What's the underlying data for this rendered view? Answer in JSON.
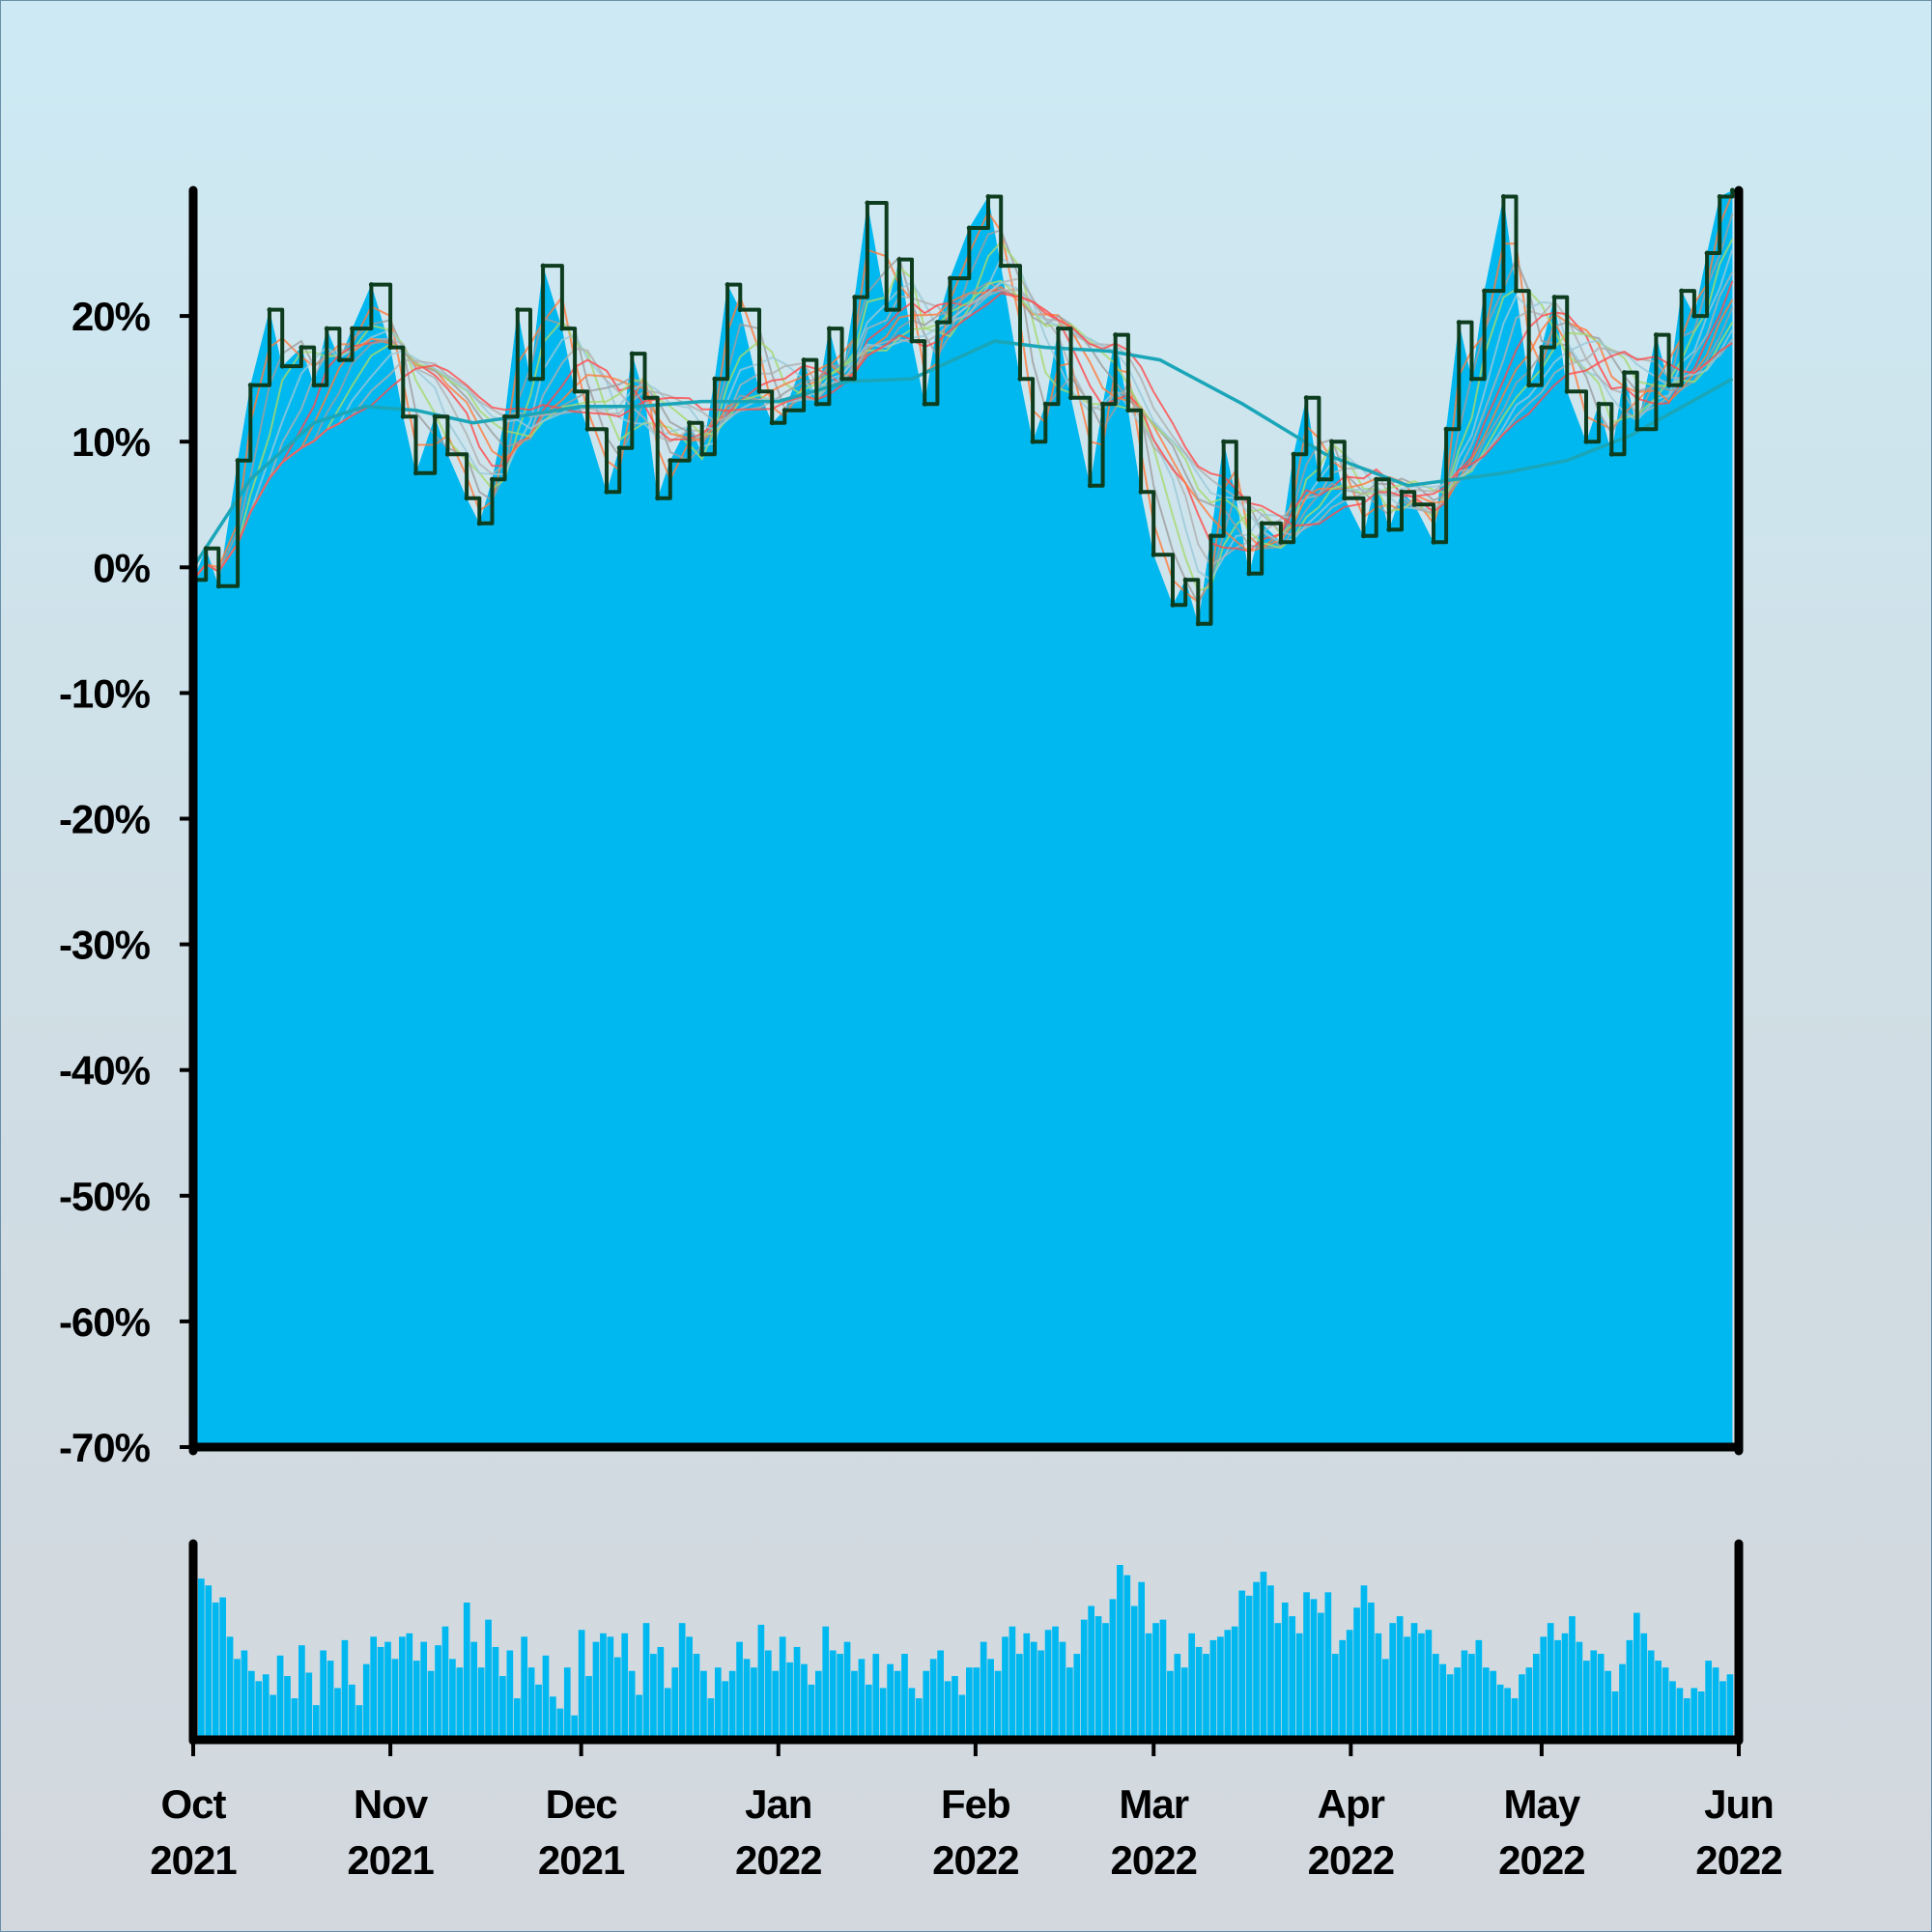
{
  "chart_data": [
    {
      "type": "area",
      "role": "price-performance",
      "y_unit": "%",
      "ylim": [
        -70,
        30
      ],
      "y_ticks": [
        {
          "value": 20,
          "label": "20%"
        },
        {
          "value": 10,
          "label": "10%"
        },
        {
          "value": 0,
          "label": "0%"
        },
        {
          "value": -10,
          "label": "-10%"
        },
        {
          "value": -20,
          "label": "-20%"
        },
        {
          "value": -30,
          "label": "-30%"
        },
        {
          "value": -40,
          "label": "-40%"
        },
        {
          "value": -50,
          "label": "-50%"
        },
        {
          "value": -60,
          "label": "-60%"
        },
        {
          "value": -70,
          "label": "-70%"
        }
      ],
      "xlim": [
        "2021-10-01",
        "2022-06-01"
      ],
      "series": [
        {
          "role": "price",
          "color": "#00b8f0",
          "points": [
            [
              "2021-10-01",
              -1
            ],
            [
              "2021-10-03",
              1.5
            ],
            [
              "2021-10-05",
              -1.5
            ],
            [
              "2021-10-08",
              8.5
            ],
            [
              "2021-10-10",
              14.5
            ],
            [
              "2021-10-13",
              20.5
            ],
            [
              "2021-10-15",
              16
            ],
            [
              "2021-10-18",
              17.5
            ],
            [
              "2021-10-20",
              14.5
            ],
            [
              "2021-10-22",
              19
            ],
            [
              "2021-10-24",
              16.5
            ],
            [
              "2021-10-26",
              19
            ],
            [
              "2021-10-29",
              22.5
            ],
            [
              "2021-11-01",
              17.5
            ],
            [
              "2021-11-03",
              12
            ],
            [
              "2021-11-05",
              7.5
            ],
            [
              "2021-11-08",
              12
            ],
            [
              "2021-11-10",
              9
            ],
            [
              "2021-11-13",
              5.5
            ],
            [
              "2021-11-15",
              3.5
            ],
            [
              "2021-11-17",
              7
            ],
            [
              "2021-11-19",
              12
            ],
            [
              "2021-11-21",
              20.5
            ],
            [
              "2021-11-23",
              15
            ],
            [
              "2021-11-25",
              24
            ],
            [
              "2021-11-28",
              19
            ],
            [
              "2021-11-30",
              14
            ],
            [
              "2021-12-02",
              11
            ],
            [
              "2021-12-05",
              6
            ],
            [
              "2021-12-07",
              9.5
            ],
            [
              "2021-12-09",
              17
            ],
            [
              "2021-12-11",
              13.5
            ],
            [
              "2021-12-13",
              5.5
            ],
            [
              "2021-12-15",
              8.5
            ],
            [
              "2021-12-18",
              11.5
            ],
            [
              "2021-12-20",
              9
            ],
            [
              "2021-12-22",
              15
            ],
            [
              "2021-12-24",
              22.5
            ],
            [
              "2021-12-26",
              20.5
            ],
            [
              "2021-12-29",
              14
            ],
            [
              "2021-12-31",
              11.5
            ],
            [
              "2022-01-02",
              12.5
            ],
            [
              "2022-01-05",
              16.5
            ],
            [
              "2022-01-07",
              13
            ],
            [
              "2022-01-09",
              19
            ],
            [
              "2022-01-11",
              15
            ],
            [
              "2022-01-13",
              21.5
            ],
            [
              "2022-01-15",
              29
            ],
            [
              "2022-01-18",
              20.5
            ],
            [
              "2022-01-20",
              24.5
            ],
            [
              "2022-01-22",
              18
            ],
            [
              "2022-01-24",
              13
            ],
            [
              "2022-01-26",
              19.5
            ],
            [
              "2022-01-28",
              23
            ],
            [
              "2022-01-31",
              27
            ],
            [
              "2022-02-03",
              29.5
            ],
            [
              "2022-02-05",
              24
            ],
            [
              "2022-02-08",
              15
            ],
            [
              "2022-02-10",
              10
            ],
            [
              "2022-02-12",
              13
            ],
            [
              "2022-02-14",
              19
            ],
            [
              "2022-02-16",
              13.5
            ],
            [
              "2022-02-19",
              6.5
            ],
            [
              "2022-02-21",
              13
            ],
            [
              "2022-02-23",
              18.5
            ],
            [
              "2022-02-25",
              12.5
            ],
            [
              "2022-02-27",
              6
            ],
            [
              "2022-03-01",
              1
            ],
            [
              "2022-03-04",
              -3
            ],
            [
              "2022-03-06",
              -1
            ],
            [
              "2022-03-08",
              -4.5
            ],
            [
              "2022-03-10",
              2.5
            ],
            [
              "2022-03-12",
              10
            ],
            [
              "2022-03-14",
              5.5
            ],
            [
              "2022-03-16",
              -0.5
            ],
            [
              "2022-03-18",
              3.5
            ],
            [
              "2022-03-21",
              2
            ],
            [
              "2022-03-23",
              9
            ],
            [
              "2022-03-25",
              13.5
            ],
            [
              "2022-03-27",
              7
            ],
            [
              "2022-03-29",
              10
            ],
            [
              "2022-03-31",
              5.5
            ],
            [
              "2022-04-03",
              2.5
            ],
            [
              "2022-04-05",
              7
            ],
            [
              "2022-04-07",
              3
            ],
            [
              "2022-04-09",
              6
            ],
            [
              "2022-04-11",
              5
            ],
            [
              "2022-04-14",
              2
            ],
            [
              "2022-04-16",
              11
            ],
            [
              "2022-04-18",
              19.5
            ],
            [
              "2022-04-20",
              15
            ],
            [
              "2022-04-22",
              22
            ],
            [
              "2022-04-25",
              29.5
            ],
            [
              "2022-04-27",
              22
            ],
            [
              "2022-04-29",
              14.5
            ],
            [
              "2022-05-01",
              17.5
            ],
            [
              "2022-05-03",
              21.5
            ],
            [
              "2022-05-05",
              14
            ],
            [
              "2022-05-08",
              10
            ],
            [
              "2022-05-10",
              13
            ],
            [
              "2022-05-12",
              9
            ],
            [
              "2022-05-14",
              15.5
            ],
            [
              "2022-05-16",
              11
            ],
            [
              "2022-05-19",
              18.5
            ],
            [
              "2022-05-21",
              14.5
            ],
            [
              "2022-05-23",
              22
            ],
            [
              "2022-05-25",
              20
            ],
            [
              "2022-05-27",
              25
            ],
            [
              "2022-05-29",
              29.5
            ],
            [
              "2022-05-31",
              30
            ]
          ]
        },
        {
          "role": "long-moving-average",
          "color": "#1aa6b8",
          "points": [
            [
              "2021-10-01",
              0
            ],
            [
              "2021-10-10",
              7
            ],
            [
              "2021-10-20",
              11.5
            ],
            [
              "2021-10-28",
              12.8
            ],
            [
              "2021-11-05",
              12.5
            ],
            [
              "2021-11-14",
              11.5
            ],
            [
              "2021-11-21",
              12
            ],
            [
              "2021-12-01",
              12.8
            ],
            [
              "2021-12-10",
              12.8
            ],
            [
              "2021-12-20",
              13.2
            ],
            [
              "2022-01-01",
              13.2
            ],
            [
              "2022-01-12",
              14.8
            ],
            [
              "2022-01-22",
              15
            ],
            [
              "2022-02-04",
              18
            ],
            [
              "2022-02-12",
              17.5
            ],
            [
              "2022-02-22",
              17.2
            ],
            [
              "2022-03-02",
              16.5
            ],
            [
              "2022-03-15",
              13
            ],
            [
              "2022-03-28",
              9
            ],
            [
              "2022-04-10",
              6.5
            ],
            [
              "2022-04-25",
              7.5
            ],
            [
              "2022-05-05",
              8.5
            ],
            [
              "2022-05-15",
              10.5
            ],
            [
              "2022-05-31",
              15
            ]
          ]
        }
      ]
    },
    {
      "type": "bar",
      "role": "volume",
      "color": "#00b8f0",
      "x_ticks": [
        {
          "date": "2021-10-01",
          "month": "Oct",
          "year": "2021"
        },
        {
          "date": "2021-11-01",
          "month": "Nov",
          "year": "2021"
        },
        {
          "date": "2021-12-01",
          "month": "Dec",
          "year": "2021"
        },
        {
          "date": "2022-01-01",
          "month": "Jan",
          "year": "2022"
        },
        {
          "date": "2022-02-01",
          "month": "Feb",
          "year": "2022"
        },
        {
          "date": "2022-03-01",
          "month": "Mar",
          "year": "2022"
        },
        {
          "date": "2022-04-01",
          "month": "Apr",
          "year": "2022"
        },
        {
          "date": "2022-05-01",
          "month": "May",
          "year": "2022"
        },
        {
          "date": "2022-06-01",
          "month": "Jun",
          "year": "2022"
        }
      ],
      "values": [
        92,
        88,
        78,
        81,
        58,
        45,
        50,
        38,
        32,
        36,
        24,
        47,
        35,
        22,
        53,
        37,
        18,
        50,
        44,
        28,
        56,
        30,
        18,
        42,
        58,
        52,
        55,
        45,
        58,
        60,
        44,
        55,
        38,
        53,
        64,
        45,
        40,
        78,
        55,
        40,
        68,
        52,
        35,
        50,
        22,
        58,
        40,
        30,
        47,
        23,
        16,
        40,
        12,
        62,
        35,
        55,
        60,
        58,
        46,
        60,
        38,
        24,
        66,
        48,
        52,
        28,
        40,
        66,
        58,
        48,
        38,
        22,
        40,
        32,
        38,
        55,
        45,
        40,
        65,
        50,
        38,
        58,
        43,
        52,
        42,
        30,
        38,
        64,
        50,
        48,
        55,
        38,
        45,
        30,
        48,
        28,
        42,
        38,
        48,
        28,
        22,
        38,
        45,
        50,
        32,
        35,
        24,
        40,
        40,
        55,
        45,
        38,
        58,
        64,
        48,
        60,
        55,
        50,
        62,
        64,
        55,
        40,
        48,
        68,
        76,
        70,
        66,
        80,
        100,
        94,
        76,
        90,
        60,
        66,
        68,
        38,
        48,
        40,
        60,
        52,
        48,
        56,
        58,
        62,
        64,
        85,
        82,
        90,
        96,
        88,
        66,
        78,
        70,
        60,
        84,
        80,
        72,
        84,
        48,
        56,
        62,
        75,
        88,
        78,
        60,
        45,
        66,
        70,
        58,
        66,
        60,
        62,
        48,
        42,
        36,
        40,
        50,
        48,
        56,
        40,
        38,
        30,
        28,
        22,
        36,
        40,
        48,
        58,
        66,
        56,
        60,
        70,
        55,
        44,
        50,
        48,
        38,
        26,
        42,
        56,
        72,
        60,
        50,
        44,
        40,
        32,
        28,
        22,
        28,
        26,
        44,
        40,
        32,
        36
      ]
    }
  ]
}
